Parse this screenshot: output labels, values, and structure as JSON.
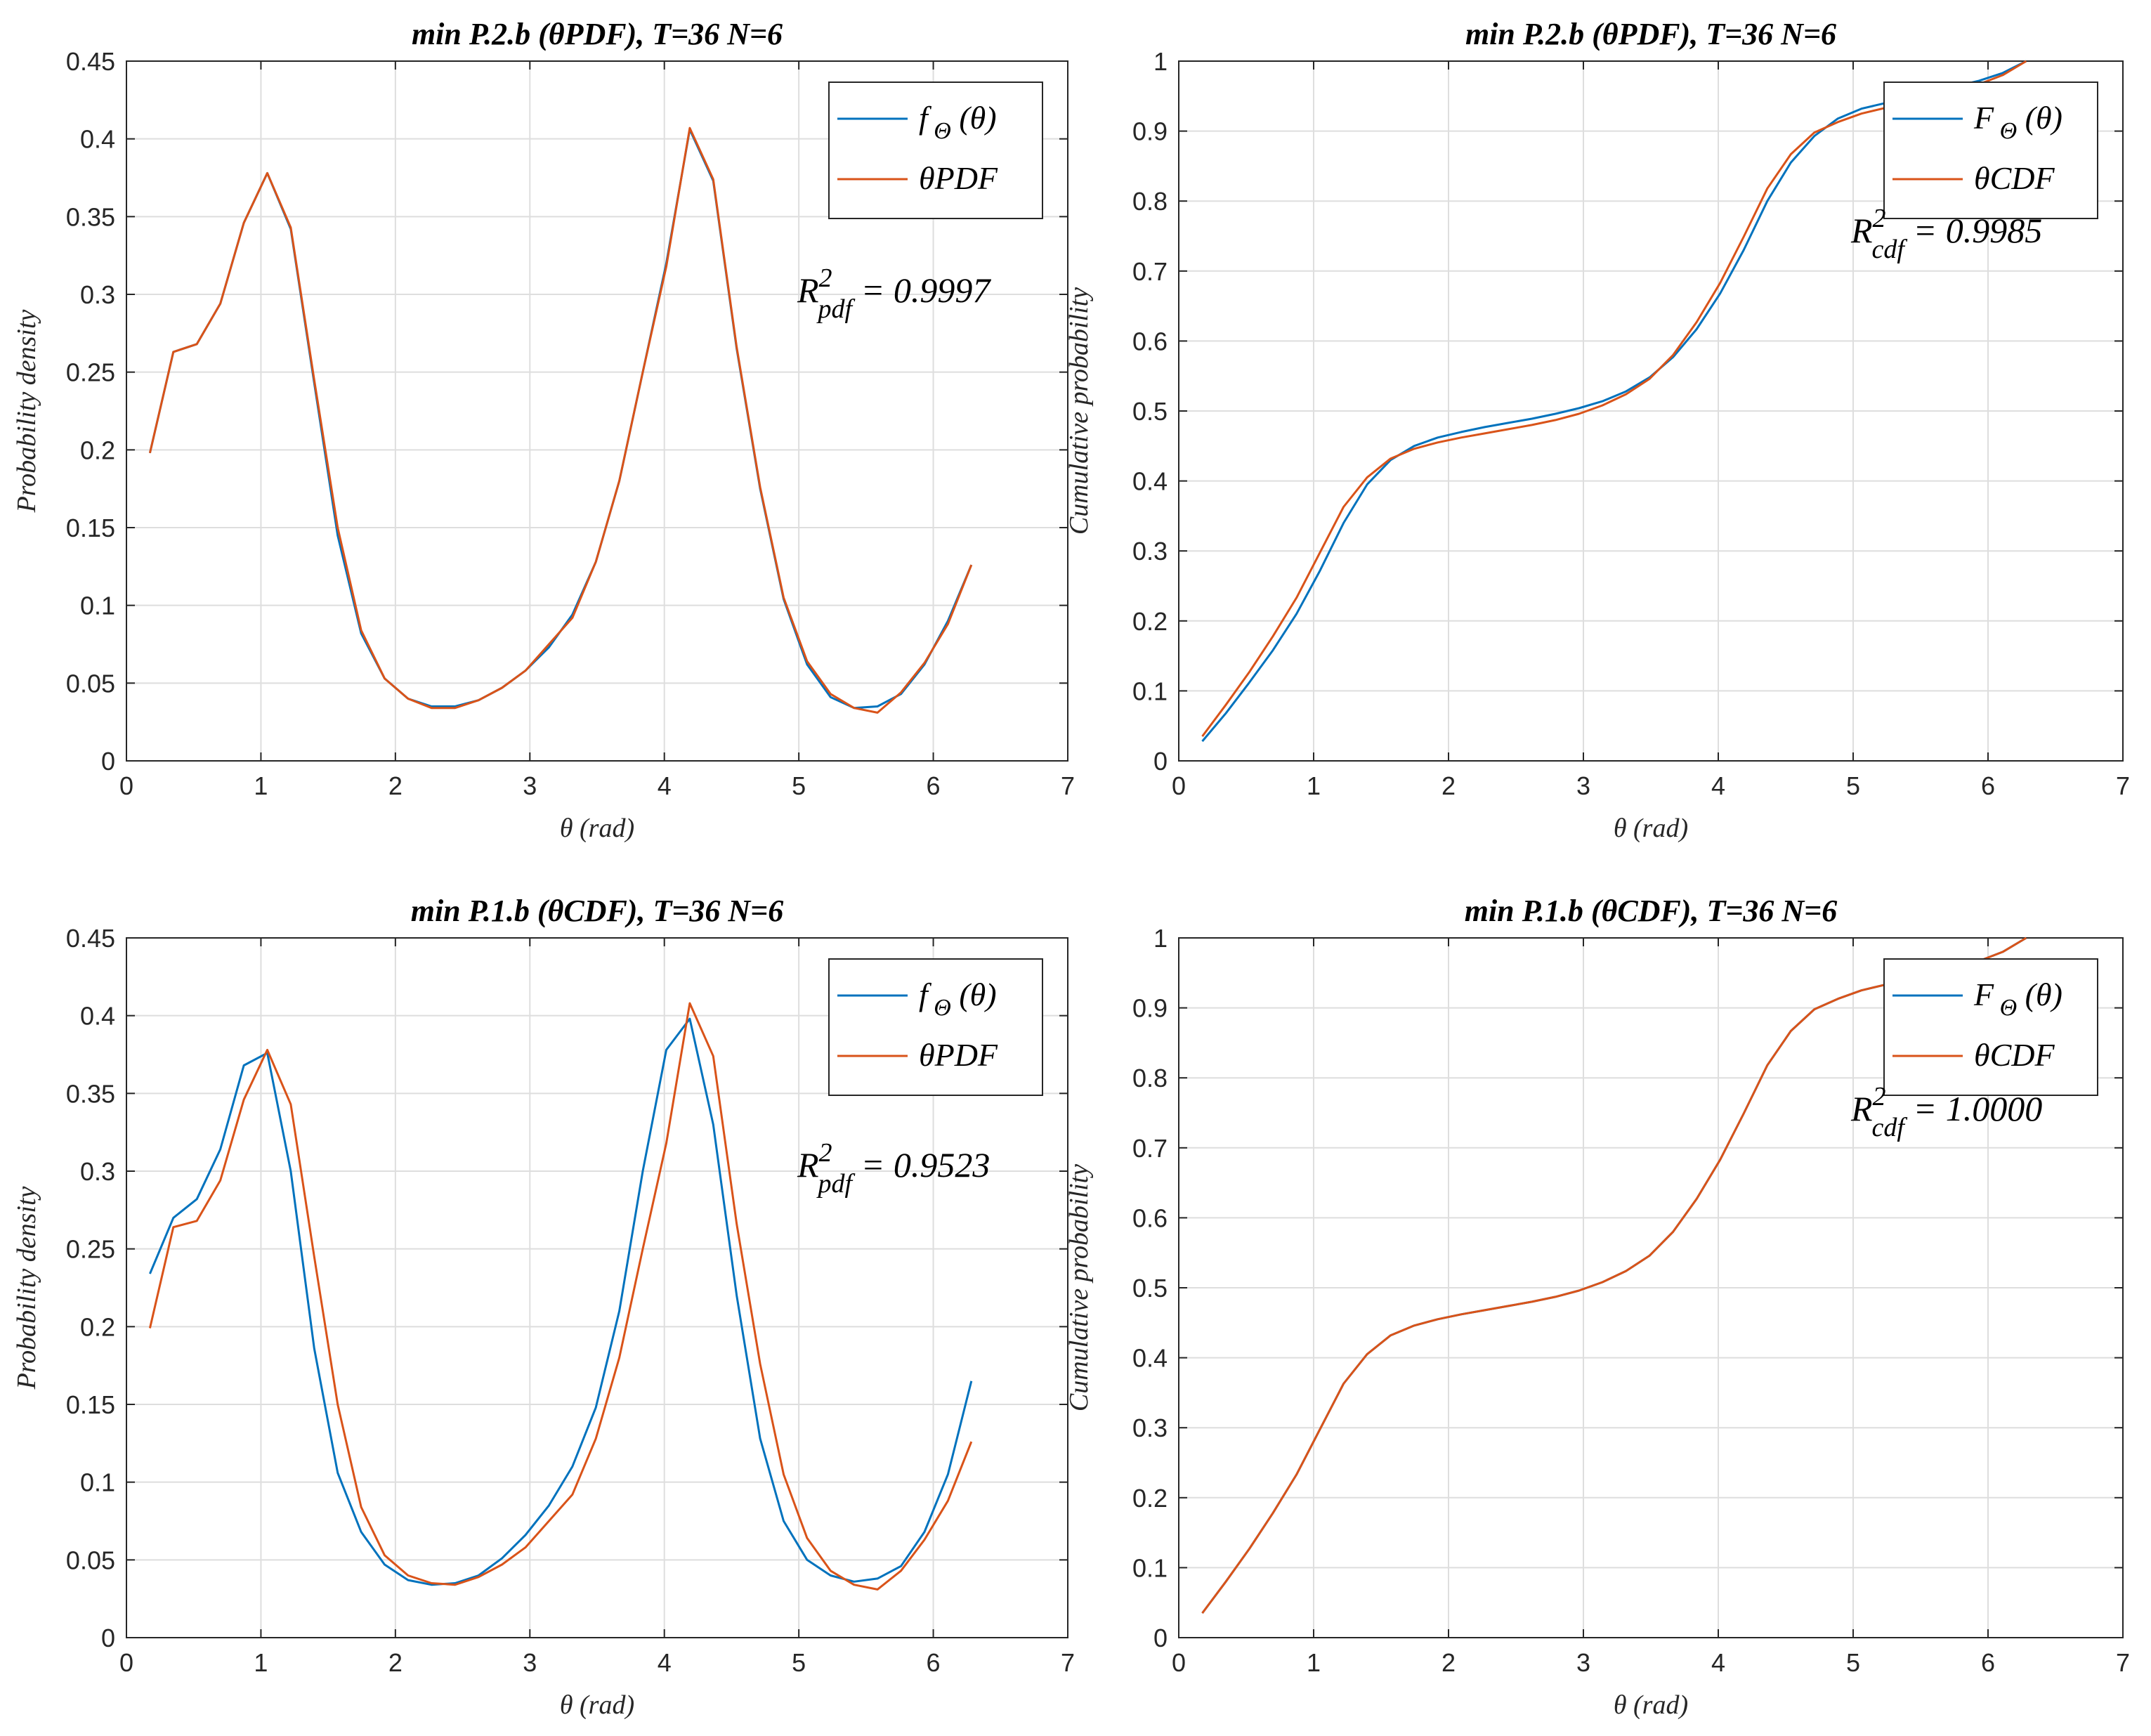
{
  "colors": {
    "blue": "#0072BD",
    "orange": "#D95319"
  },
  "chart_data": [
    {
      "type": "line",
      "title": "min P.2.b (θPDF), T=36 N=6",
      "xlabel": "θ (rad)",
      "ylabel": "Probability density",
      "xlim": [
        0,
        7
      ],
      "ylim": [
        0,
        0.45
      ],
      "xticks": [
        0,
        1,
        2,
        3,
        4,
        5,
        6,
        7
      ],
      "yticks": [
        0,
        0.05,
        0.1,
        0.15,
        0.2,
        0.25,
        0.3,
        0.35,
        0.4,
        0.45
      ],
      "ytick_labels": [
        "0",
        "0.05",
        "0.1",
        "0.15",
        "0.2",
        "0.25",
        "0.3",
        "0.35",
        "0.4",
        "0.45"
      ],
      "grid": true,
      "legend_position": "top-right",
      "annotation": {
        "main": "R",
        "sup": "2",
        "sub": "pdf",
        "rest": " = 0.9997"
      },
      "x": [
        0.1745,
        0.349,
        0.5236,
        0.6981,
        0.8727,
        1.0472,
        1.2217,
        1.3963,
        1.5708,
        1.7453,
        1.9199,
        2.0944,
        2.2689,
        2.4435,
        2.618,
        2.7925,
        2.9671,
        3.1416,
        3.3161,
        3.4907,
        3.6652,
        3.8397,
        4.0143,
        4.1888,
        4.3633,
        4.5379,
        4.7124,
        4.8869,
        5.0615,
        5.236,
        5.4105,
        5.5851,
        5.7596,
        5.9341,
        6.1087,
        6.2832
      ],
      "series": [
        {
          "name": "f",
          "name_sub": "Θ",
          "name_tail": " (θ)",
          "color": "#0072BD",
          "values": [
            0.198,
            0.263,
            0.268,
            0.294,
            0.346,
            0.378,
            0.342,
            0.243,
            0.145,
            0.082,
            0.053,
            0.04,
            0.035,
            0.035,
            0.039,
            0.047,
            0.058,
            0.073,
            0.094,
            0.128,
            0.18,
            0.25,
            0.32,
            0.406,
            0.373,
            0.265,
            0.175,
            0.104,
            0.062,
            0.041,
            0.034,
            0.035,
            0.043,
            0.062,
            0.09,
            0.126
          ]
        },
        {
          "name": "θPDF",
          "color": "#D95319",
          "values": [
            0.198,
            0.263,
            0.268,
            0.294,
            0.346,
            0.378,
            0.343,
            0.245,
            0.15,
            0.084,
            0.053,
            0.04,
            0.034,
            0.034,
            0.039,
            0.047,
            0.058,
            0.075,
            0.092,
            0.128,
            0.18,
            0.25,
            0.318,
            0.407,
            0.374,
            0.266,
            0.176,
            0.105,
            0.064,
            0.043,
            0.034,
            0.031,
            0.044,
            0.063,
            0.088,
            0.126
          ]
        }
      ]
    },
    {
      "type": "line",
      "title": "min P.2.b (θPDF), T=36 N=6",
      "xlabel": "θ (rad)",
      "ylabel": "Cumulative probability",
      "xlim": [
        0,
        7
      ],
      "ylim": [
        0,
        1
      ],
      "xticks": [
        0,
        1,
        2,
        3,
        4,
        5,
        6,
        7
      ],
      "yticks": [
        0,
        0.1,
        0.2,
        0.3,
        0.4,
        0.5,
        0.6,
        0.7,
        0.8,
        0.9,
        1
      ],
      "ytick_labels": [
        "0",
        "0.1",
        "0.2",
        "0.3",
        "0.4",
        "0.5",
        "0.6",
        "0.7",
        "0.8",
        "0.9",
        "1"
      ],
      "grid": true,
      "legend_position": "top-right",
      "annotation": {
        "main": "R",
        "sup": "2",
        "sub": "cdf",
        "rest": " = 0.9985"
      },
      "x": [
        0.1745,
        0.349,
        0.5236,
        0.6981,
        0.8727,
        1.0472,
        1.2217,
        1.3963,
        1.5708,
        1.7453,
        1.9199,
        2.0944,
        2.2689,
        2.4435,
        2.618,
        2.7925,
        2.9671,
        3.1416,
        3.3161,
        3.4907,
        3.6652,
        3.8397,
        4.0143,
        4.1888,
        4.3633,
        4.5379,
        4.7124,
        4.8869,
        5.0615,
        5.236,
        5.4105,
        5.5851,
        5.7596,
        5.9341,
        6.1087,
        6.2832
      ],
      "series": [
        {
          "name": "F",
          "name_sub": "Θ",
          "name_tail": " (θ)",
          "color": "#0072BD",
          "values": [
            0.028,
            0.068,
            0.112,
            0.158,
            0.21,
            0.272,
            0.34,
            0.395,
            0.43,
            0.45,
            0.462,
            0.47,
            0.477,
            0.483,
            0.489,
            0.496,
            0.504,
            0.514,
            0.528,
            0.548,
            0.577,
            0.617,
            0.668,
            0.73,
            0.8,
            0.855,
            0.893,
            0.918,
            0.932,
            0.94,
            0.947,
            0.955,
            0.964,
            0.972,
            0.983,
            1.0
          ]
        },
        {
          "name": "θCDF",
          "color": "#D95319",
          "values": [
            0.035,
            0.08,
            0.127,
            0.178,
            0.233,
            0.298,
            0.363,
            0.405,
            0.432,
            0.446,
            0.455,
            0.462,
            0.468,
            0.474,
            0.48,
            0.487,
            0.496,
            0.508,
            0.524,
            0.546,
            0.58,
            0.627,
            0.683,
            0.749,
            0.818,
            0.867,
            0.898,
            0.913,
            0.925,
            0.933,
            0.94,
            0.948,
            0.957,
            0.967,
            0.98,
            1.0
          ]
        }
      ]
    },
    {
      "type": "line",
      "title": "min P.1.b (θCDF), T=36 N=6",
      "xlabel": "θ (rad)",
      "ylabel": "Probability density",
      "xlim": [
        0,
        7
      ],
      "ylim": [
        0,
        0.45
      ],
      "xticks": [
        0,
        1,
        2,
        3,
        4,
        5,
        6,
        7
      ],
      "yticks": [
        0,
        0.05,
        0.1,
        0.15,
        0.2,
        0.25,
        0.3,
        0.35,
        0.4,
        0.45
      ],
      "ytick_labels": [
        "0",
        "0.05",
        "0.1",
        "0.15",
        "0.2",
        "0.25",
        "0.3",
        "0.35",
        "0.4",
        "0.45"
      ],
      "grid": true,
      "legend_position": "top-right",
      "annotation": {
        "main": "R",
        "sup": "2",
        "sub": "pdf",
        "rest": " = 0.9523"
      },
      "x": [
        0.1745,
        0.349,
        0.5236,
        0.6981,
        0.8727,
        1.0472,
        1.2217,
        1.3963,
        1.5708,
        1.7453,
        1.9199,
        2.0944,
        2.2689,
        2.4435,
        2.618,
        2.7925,
        2.9671,
        3.1416,
        3.3161,
        3.4907,
        3.6652,
        3.8397,
        4.0143,
        4.1888,
        4.3633,
        4.5379,
        4.7124,
        4.8869,
        5.0615,
        5.236,
        5.4105,
        5.5851,
        5.7596,
        5.9341,
        6.1087,
        6.2832
      ],
      "series": [
        {
          "name": "f",
          "name_sub": "Θ",
          "name_tail": " (θ)",
          "color": "#0072BD",
          "values": [
            0.234,
            0.27,
            0.282,
            0.314,
            0.368,
            0.376,
            0.3,
            0.186,
            0.106,
            0.068,
            0.047,
            0.037,
            0.034,
            0.035,
            0.04,
            0.051,
            0.066,
            0.085,
            0.11,
            0.148,
            0.21,
            0.3,
            0.378,
            0.398,
            0.33,
            0.22,
            0.128,
            0.075,
            0.05,
            0.04,
            0.036,
            0.038,
            0.046,
            0.068,
            0.105,
            0.165
          ]
        },
        {
          "name": "θPDF",
          "color": "#D95319",
          "values": [
            0.199,
            0.264,
            0.268,
            0.294,
            0.346,
            0.378,
            0.343,
            0.245,
            0.15,
            0.084,
            0.053,
            0.04,
            0.035,
            0.034,
            0.039,
            0.047,
            0.058,
            0.075,
            0.092,
            0.128,
            0.18,
            0.25,
            0.318,
            0.408,
            0.374,
            0.266,
            0.176,
            0.105,
            0.064,
            0.043,
            0.034,
            0.031,
            0.043,
            0.063,
            0.088,
            0.126
          ]
        }
      ]
    },
    {
      "type": "line",
      "title": "min P.1.b (θCDF), T=36 N=6",
      "xlabel": "θ (rad)",
      "ylabel": "Cumulative probability",
      "xlim": [
        0,
        7
      ],
      "ylim": [
        0,
        1
      ],
      "xticks": [
        0,
        1,
        2,
        3,
        4,
        5,
        6,
        7
      ],
      "yticks": [
        0,
        0.1,
        0.2,
        0.3,
        0.4,
        0.5,
        0.6,
        0.7,
        0.8,
        0.9,
        1
      ],
      "ytick_labels": [
        "0",
        "0.1",
        "0.2",
        "0.3",
        "0.4",
        "0.5",
        "0.6",
        "0.7",
        "0.8",
        "0.9",
        "1"
      ],
      "grid": true,
      "legend_position": "top-right",
      "annotation": {
        "main": "R",
        "sup": "2",
        "sub": "cdf",
        "rest": " = 1.0000"
      },
      "x": [
        0.1745,
        0.349,
        0.5236,
        0.6981,
        0.8727,
        1.0472,
        1.2217,
        1.3963,
        1.5708,
        1.7453,
        1.9199,
        2.0944,
        2.2689,
        2.4435,
        2.618,
        2.7925,
        2.9671,
        3.1416,
        3.3161,
        3.4907,
        3.6652,
        3.8397,
        4.0143,
        4.1888,
        4.3633,
        4.5379,
        4.7124,
        4.8869,
        5.0615,
        5.236,
        5.4105,
        5.5851,
        5.7596,
        5.9341,
        6.1087,
        6.2832
      ],
      "series": [
        {
          "name": "F",
          "name_sub": "Θ",
          "name_tail": " (θ)",
          "color": "#0072BD",
          "values": [
            0.035,
            0.08,
            0.127,
            0.178,
            0.233,
            0.298,
            0.363,
            0.405,
            0.432,
            0.446,
            0.455,
            0.462,
            0.468,
            0.474,
            0.48,
            0.487,
            0.496,
            0.508,
            0.524,
            0.546,
            0.58,
            0.627,
            0.683,
            0.749,
            0.818,
            0.867,
            0.898,
            0.913,
            0.925,
            0.933,
            0.94,
            0.948,
            0.957,
            0.967,
            0.98,
            1.0
          ]
        },
        {
          "name": "θCDF",
          "color": "#D95319",
          "values": [
            0.035,
            0.08,
            0.127,
            0.178,
            0.233,
            0.298,
            0.363,
            0.405,
            0.432,
            0.446,
            0.455,
            0.462,
            0.468,
            0.474,
            0.48,
            0.487,
            0.496,
            0.508,
            0.524,
            0.546,
            0.58,
            0.627,
            0.683,
            0.749,
            0.818,
            0.867,
            0.898,
            0.913,
            0.925,
            0.933,
            0.94,
            0.948,
            0.957,
            0.967,
            0.98,
            1.0
          ]
        }
      ]
    }
  ]
}
